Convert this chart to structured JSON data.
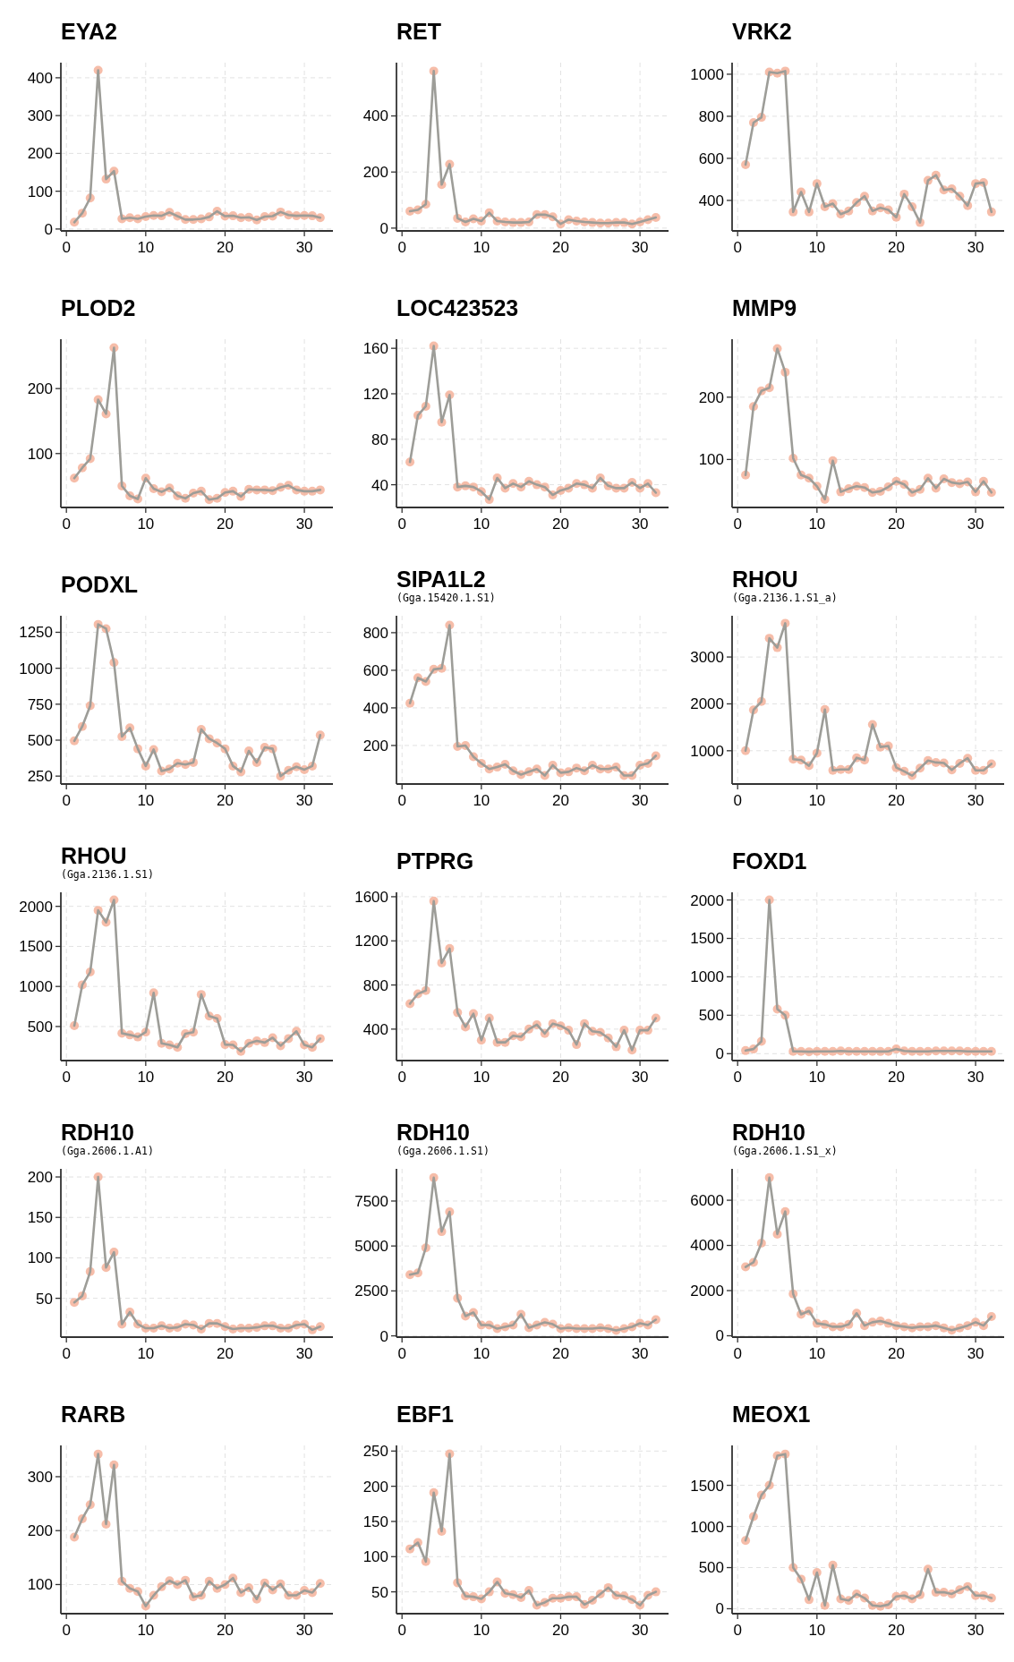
{
  "chart_data": [
    {
      "type": "line",
      "title": "EYA2",
      "x": [
        1,
        2,
        3,
        4,
        5,
        6,
        7,
        8,
        9,
        10,
        11,
        12,
        13,
        14,
        15,
        16,
        17,
        18,
        19,
        20,
        21,
        22,
        23,
        24,
        25,
        26,
        27,
        28,
        29,
        30,
        31,
        32
      ],
      "series": [
        {
          "color": "#f4b29a",
          "values": [
            18,
            42,
            82,
            420,
            132,
            153,
            27,
            30,
            27,
            33,
            36,
            35,
            44,
            34,
            25,
            25,
            27,
            32,
            47,
            34,
            35,
            30,
            31,
            24,
            33,
            34,
            45,
            37,
            35,
            36,
            35,
            30
          ]
        }
      ],
      "xlim": [
        -0.7,
        33.6
      ],
      "xticks": [
        0,
        10,
        20,
        30
      ],
      "ylim": [
        -5,
        440
      ],
      "yticks": [
        0,
        100,
        200,
        300,
        400
      ],
      "grid": true,
      "marker": "circle"
    },
    {
      "type": "line",
      "title": "RET",
      "x": [
        1,
        2,
        3,
        4,
        5,
        6,
        7,
        8,
        9,
        10,
        11,
        12,
        13,
        14,
        15,
        16,
        17,
        18,
        19,
        20,
        21,
        22,
        23,
        24,
        25,
        26,
        27,
        28,
        29,
        30,
        31,
        32
      ],
      "series": [
        {
          "color": "#f4b29a",
          "values": [
            60,
            65,
            85,
            560,
            155,
            228,
            35,
            22,
            33,
            25,
            55,
            25,
            22,
            20,
            20,
            22,
            48,
            48,
            40,
            15,
            30,
            25,
            22,
            20,
            18,
            18,
            20,
            20,
            15,
            22,
            30,
            38
          ]
        }
      ],
      "xlim": [
        -0.7,
        33.6
      ],
      "xticks": [
        0,
        10,
        20,
        30
      ],
      "ylim": [
        -10,
        590
      ],
      "yticks": [
        0,
        200,
        400
      ],
      "grid": true,
      "marker": "circle"
    },
    {
      "type": "line",
      "title": "VRK2",
      "x": [
        1,
        2,
        3,
        4,
        5,
        6,
        7,
        8,
        9,
        10,
        11,
        12,
        13,
        14,
        15,
        16,
        17,
        18,
        19,
        20,
        21,
        22,
        23,
        24,
        25,
        26,
        27,
        28,
        29,
        30,
        31,
        32
      ],
      "series": [
        {
          "color": "#f4b29a",
          "values": [
            570,
            770,
            795,
            1010,
            1005,
            1015,
            345,
            440,
            345,
            480,
            370,
            385,
            335,
            350,
            390,
            420,
            350,
            365,
            355,
            320,
            430,
            370,
            295,
            495,
            520,
            450,
            455,
            420,
            375,
            480,
            485,
            345
          ]
        }
      ],
      "xlim": [
        -0.7,
        33.6
      ],
      "xticks": [
        0,
        10,
        20,
        30
      ],
      "ylim": [
        255,
        1055
      ],
      "yticks": [
        400,
        600,
        800,
        1000
      ],
      "grid": true,
      "marker": "circle"
    },
    {
      "type": "line",
      "title": "PLOD2",
      "x": [
        1,
        2,
        3,
        4,
        5,
        6,
        7,
        8,
        9,
        10,
        11,
        12,
        13,
        14,
        15,
        16,
        17,
        18,
        19,
        20,
        21,
        22,
        23,
        24,
        25,
        26,
        27,
        28,
        29,
        30,
        31,
        32
      ],
      "series": [
        {
          "color": "#f4b29a",
          "values": [
            62,
            78,
            92,
            183,
            161,
            263,
            50,
            35,
            30,
            62,
            46,
            41,
            47,
            35,
            31,
            39,
            42,
            29,
            31,
            40,
            42,
            34,
            45,
            44,
            44,
            43,
            48,
            51,
            44,
            42,
            42,
            44
          ]
        }
      ],
      "xlim": [
        -0.7,
        33.6
      ],
      "xticks": [
        0,
        10,
        20,
        30
      ],
      "ylim": [
        17,
        276
      ],
      "yticks": [
        100,
        200
      ],
      "grid": true,
      "marker": "circle"
    },
    {
      "type": "line",
      "title": "LOC423523",
      "x": [
        1,
        2,
        3,
        4,
        5,
        6,
        7,
        8,
        9,
        10,
        11,
        12,
        13,
        14,
        15,
        16,
        17,
        18,
        19,
        20,
        21,
        22,
        23,
        24,
        25,
        26,
        27,
        28,
        29,
        30,
        31,
        32
      ],
      "series": [
        {
          "color": "#f4b29a",
          "values": [
            60,
            101,
            109,
            162,
            95,
            119,
            38,
            39,
            38,
            34,
            27,
            46,
            37,
            41,
            38,
            43,
            40,
            38,
            31,
            35,
            37,
            41,
            40,
            37,
            46,
            39,
            37,
            37,
            42,
            37,
            41,
            33
          ]
        }
      ],
      "xlim": [
        -0.7,
        33.6
      ],
      "xticks": [
        0,
        10,
        20,
        30
      ],
      "ylim": [
        20,
        168
      ],
      "yticks": [
        40,
        80,
        120,
        160
      ],
      "grid": true,
      "marker": "circle"
    },
    {
      "type": "line",
      "title": "MMP9",
      "x": [
        1,
        2,
        3,
        4,
        5,
        6,
        7,
        8,
        9,
        10,
        11,
        12,
        13,
        14,
        15,
        16,
        17,
        18,
        19,
        20,
        21,
        22,
        23,
        24,
        25,
        26,
        27,
        28,
        29,
        30,
        31,
        32
      ],
      "series": [
        {
          "color": "#f4b29a",
          "values": [
            75,
            185,
            210,
            215,
            278,
            240,
            102,
            75,
            70,
            57,
            36,
            98,
            48,
            53,
            57,
            55,
            47,
            49,
            56,
            65,
            60,
            47,
            52,
            70,
            54,
            69,
            63,
            61,
            64,
            48,
            65,
            47
          ]
        }
      ],
      "xlim": [
        -0.7,
        33.6
      ],
      "xticks": [
        0,
        10,
        20,
        30
      ],
      "ylim": [
        23,
        293
      ],
      "yticks": [
        100,
        200
      ],
      "grid": true,
      "marker": "circle"
    },
    {
      "type": "line",
      "title": "PODXL",
      "x": [
        1,
        2,
        3,
        4,
        5,
        6,
        7,
        8,
        9,
        10,
        11,
        12,
        13,
        14,
        15,
        16,
        17,
        18,
        19,
        20,
        21,
        22,
        23,
        24,
        25,
        26,
        27,
        28,
        29,
        30,
        31,
        32
      ],
      "series": [
        {
          "color": "#f4b29a",
          "values": [
            495,
            595,
            740,
            1305,
            1275,
            1040,
            525,
            585,
            440,
            320,
            435,
            285,
            300,
            340,
            330,
            345,
            575,
            510,
            480,
            440,
            320,
            280,
            425,
            345,
            450,
            440,
            250,
            290,
            315,
            295,
            320,
            535
          ]
        }
      ],
      "xlim": [
        -0.7,
        33.6
      ],
      "xticks": [
        0,
        10,
        20,
        30
      ],
      "ylim": [
        195,
        1365
      ],
      "yticks": [
        250,
        500,
        750,
        1000,
        1250
      ],
      "grid": true,
      "marker": "circle"
    },
    {
      "type": "line",
      "title": "SIPA1L2",
      "subtitle": "(Gga.15420.1.S1)",
      "x": [
        1,
        2,
        3,
        4,
        5,
        6,
        7,
        8,
        9,
        10,
        11,
        12,
        13,
        14,
        15,
        16,
        17,
        18,
        19,
        20,
        21,
        22,
        23,
        24,
        25,
        26,
        27,
        28,
        29,
        30,
        31,
        32
      ],
      "series": [
        {
          "color": "#f4b29a",
          "values": [
            425,
            560,
            540,
            605,
            610,
            840,
            195,
            200,
            140,
            105,
            75,
            85,
            100,
            65,
            45,
            60,
            75,
            40,
            95,
            55,
            60,
            80,
            65,
            95,
            75,
            75,
            85,
            40,
            40,
            95,
            105,
            145
          ]
        }
      ],
      "xlim": [
        -0.7,
        33.6
      ],
      "xticks": [
        0,
        10,
        20,
        30
      ],
      "ylim": [
        -5,
        890
      ],
      "yticks": [
        200,
        400,
        600,
        800
      ],
      "grid": true,
      "marker": "circle"
    },
    {
      "type": "line",
      "title": "RHOU",
      "subtitle": "(Gga.2136.1.S1_a)",
      "x": [
        1,
        2,
        3,
        4,
        5,
        6,
        7,
        8,
        9,
        10,
        11,
        12,
        13,
        14,
        15,
        16,
        17,
        18,
        19,
        20,
        21,
        22,
        23,
        24,
        25,
        26,
        27,
        28,
        29,
        30,
        31,
        32
      ],
      "series": [
        {
          "color": "#f4b29a",
          "values": [
            1000,
            1870,
            2050,
            3400,
            3200,
            3720,
            820,
            800,
            680,
            950,
            1880,
            580,
            600,
            600,
            850,
            800,
            1560,
            1080,
            1100,
            640,
            560,
            470,
            630,
            790,
            750,
            740,
            590,
            730,
            840,
            580,
            580,
            720
          ]
        }
      ],
      "xlim": [
        -0.7,
        33.6
      ],
      "xticks": [
        0,
        10,
        20,
        30
      ],
      "ylim": [
        290,
        3880
      ],
      "yticks": [
        1000,
        2000,
        3000
      ],
      "grid": true,
      "marker": "circle"
    },
    {
      "type": "line",
      "title": "RHOU",
      "subtitle": "(Gga.2136.1.S1)",
      "x": [
        1,
        2,
        3,
        4,
        5,
        6,
        7,
        8,
        9,
        10,
        11,
        12,
        13,
        14,
        15,
        16,
        17,
        18,
        19,
        20,
        21,
        22,
        23,
        24,
        25,
        26,
        27,
        28,
        29,
        30,
        31,
        32
      ],
      "series": [
        {
          "color": "#f4b29a",
          "values": [
            510,
            1020,
            1180,
            1950,
            1800,
            2080,
            415,
            395,
            370,
            430,
            920,
            290,
            270,
            240,
            410,
            430,
            900,
            630,
            600,
            275,
            270,
            190,
            290,
            320,
            300,
            360,
            260,
            350,
            440,
            270,
            240,
            350
          ]
        }
      ],
      "xlim": [
        -0.7,
        33.6
      ],
      "xticks": [
        0,
        10,
        20,
        30
      ],
      "ylim": [
        75,
        2175
      ],
      "yticks": [
        500,
        1000,
        1500,
        2000
      ],
      "grid": true,
      "marker": "circle"
    },
    {
      "type": "line",
      "title": "PTPRG",
      "x": [
        1,
        2,
        3,
        4,
        5,
        6,
        7,
        8,
        9,
        10,
        11,
        12,
        13,
        14,
        15,
        16,
        17,
        18,
        19,
        20,
        21,
        22,
        23,
        24,
        25,
        26,
        27,
        28,
        29,
        30,
        31,
        32
      ],
      "series": [
        {
          "color": "#f4b29a",
          "values": [
            630,
            720,
            750,
            1560,
            1000,
            1130,
            550,
            420,
            540,
            300,
            500,
            280,
            280,
            340,
            330,
            400,
            440,
            360,
            450,
            430,
            390,
            260,
            450,
            380,
            370,
            320,
            240,
            390,
            210,
            390,
            390,
            500
          ]
        }
      ],
      "xlim": [
        -0.7,
        33.6
      ],
      "xticks": [
        0,
        10,
        20,
        30
      ],
      "ylim": [
        115,
        1640
      ],
      "yticks": [
        400,
        800,
        1200,
        1600
      ],
      "grid": true,
      "marker": "circle"
    },
    {
      "type": "line",
      "title": "FOXD1",
      "x": [
        1,
        2,
        3,
        4,
        5,
        6,
        7,
        8,
        9,
        10,
        11,
        12,
        13,
        14,
        15,
        16,
        17,
        18,
        19,
        20,
        21,
        22,
        23,
        24,
        25,
        26,
        27,
        28,
        29,
        30,
        31,
        32
      ],
      "series": [
        {
          "color": "#f4b29a",
          "values": [
            40,
            60,
            160,
            2000,
            580,
            500,
            30,
            30,
            25,
            30,
            30,
            30,
            35,
            30,
            30,
            30,
            30,
            28,
            30,
            60,
            35,
            30,
            30,
            30,
            35,
            35,
            35,
            35,
            30,
            30,
            30,
            30
          ]
        }
      ],
      "xlim": [
        -0.7,
        33.6
      ],
      "xticks": [
        0,
        10,
        20,
        30
      ],
      "ylim": [
        -90,
        2100
      ],
      "yticks": [
        0,
        500,
        1000,
        1500,
        2000
      ],
      "grid": true,
      "marker": "circle"
    },
    {
      "type": "line",
      "title": "RDH10",
      "subtitle": "(Gga.2606.1.A1)",
      "x": [
        1,
        2,
        3,
        4,
        5,
        6,
        7,
        8,
        9,
        10,
        11,
        12,
        13,
        14,
        15,
        16,
        17,
        18,
        19,
        20,
        21,
        22,
        23,
        24,
        25,
        26,
        27,
        28,
        29,
        30,
        31,
        32
      ],
      "series": [
        {
          "color": "#f4b29a",
          "values": [
            45,
            53,
            83,
            200,
            88,
            107,
            18,
            33,
            18,
            13,
            13,
            16,
            13,
            14,
            18,
            17,
            12,
            19,
            19,
            15,
            12,
            13,
            13,
            14,
            16,
            16,
            13,
            13,
            17,
            18,
            11,
            15
          ]
        }
      ],
      "xlim": [
        -0.7,
        33.6
      ],
      "xticks": [
        0,
        10,
        20,
        30
      ],
      "ylim": [
        2,
        210
      ],
      "yticks": [
        50,
        100,
        150,
        200
      ],
      "grid": true,
      "marker": "circle"
    },
    {
      "type": "line",
      "title": "RDH10",
      "subtitle": "(Gga.2606.1.S1)",
      "x": [
        1,
        2,
        3,
        4,
        5,
        6,
        7,
        8,
        9,
        10,
        11,
        12,
        13,
        14,
        15,
        16,
        17,
        18,
        19,
        20,
        21,
        22,
        23,
        24,
        25,
        26,
        27,
        28,
        29,
        30,
        31,
        32
      ],
      "series": [
        {
          "color": "#f4b29a",
          "values": [
            3400,
            3500,
            4900,
            8800,
            5800,
            6900,
            2100,
            1100,
            1300,
            600,
            600,
            400,
            500,
            600,
            1200,
            450,
            600,
            750,
            650,
            400,
            450,
            400,
            400,
            400,
            450,
            400,
            300,
            400,
            500,
            700,
            600,
            900
          ]
        }
      ],
      "xlim": [
        -0.7,
        33.6
      ],
      "xticks": [
        0,
        10,
        20,
        30
      ],
      "ylim": [
        -70,
        9290
      ],
      "yticks": [
        0,
        2500,
        5000,
        7500
      ],
      "grid": true,
      "marker": "circle"
    },
    {
      "type": "line",
      "title": "RDH10",
      "subtitle": "(Gga.2606.1.S1_x)",
      "x": [
        1,
        2,
        3,
        4,
        5,
        6,
        7,
        8,
        9,
        10,
        11,
        12,
        13,
        14,
        15,
        16,
        17,
        18,
        19,
        20,
        21,
        22,
        23,
        24,
        25,
        26,
        27,
        28,
        29,
        30,
        31,
        32
      ],
      "series": [
        {
          "color": "#f4b29a",
          "values": [
            3050,
            3250,
            4100,
            7000,
            4500,
            5500,
            1850,
            950,
            1100,
            550,
            500,
            400,
            400,
            500,
            1000,
            450,
            600,
            650,
            550,
            450,
            400,
            350,
            400,
            400,
            450,
            350,
            250,
            350,
            450,
            600,
            450,
            850
          ]
        }
      ],
      "xlim": [
        -0.7,
        33.6
      ],
      "xticks": [
        0,
        10,
        20,
        30
      ],
      "ylim": [
        -60,
        7390
      ],
      "yticks": [
        0,
        2000,
        4000,
        6000
      ],
      "grid": true,
      "marker": "circle"
    },
    {
      "type": "line",
      "title": "RARB",
      "x": [
        1,
        2,
        3,
        4,
        5,
        6,
        7,
        8,
        9,
        10,
        11,
        12,
        13,
        14,
        15,
        16,
        17,
        18,
        19,
        20,
        21,
        22,
        23,
        24,
        25,
        26,
        27,
        28,
        29,
        30,
        31,
        32
      ],
      "series": [
        {
          "color": "#f4b29a",
          "values": [
            188,
            222,
            248,
            342,
            212,
            322,
            106,
            93,
            87,
            60,
            80,
            96,
            107,
            100,
            108,
            77,
            80,
            106,
            93,
            100,
            112,
            85,
            94,
            73,
            103,
            90,
            101,
            80,
            80,
            89,
            85,
            102
          ]
        }
      ],
      "xlim": [
        -0.7,
        33.6
      ],
      "xticks": [
        0,
        10,
        20,
        30
      ],
      "ylim": [
        46,
        358
      ],
      "yticks": [
        100,
        200,
        300
      ],
      "grid": true,
      "marker": "circle"
    },
    {
      "type": "line",
      "title": "EBF1",
      "x": [
        1,
        2,
        3,
        4,
        5,
        6,
        7,
        8,
        9,
        10,
        11,
        12,
        13,
        14,
        15,
        16,
        17,
        18,
        19,
        20,
        21,
        22,
        23,
        24,
        25,
        26,
        27,
        28,
        29,
        30,
        31,
        32
      ],
      "series": [
        {
          "color": "#f4b29a",
          "values": [
            111,
            120,
            93,
            191,
            136,
            246,
            63,
            44,
            43,
            40,
            50,
            64,
            48,
            46,
            42,
            52,
            31,
            35,
            41,
            41,
            43,
            43,
            32,
            38,
            47,
            56,
            45,
            44,
            39,
            31,
            45,
            50
          ]
        }
      ],
      "xlim": [
        -0.7,
        33.6
      ],
      "xticks": [
        0,
        10,
        20,
        30
      ],
      "ylim": [
        19,
        258
      ],
      "yticks": [
        50,
        100,
        150,
        200,
        250
      ],
      "grid": true,
      "marker": "circle"
    },
    {
      "type": "line",
      "title": "MEOX1",
      "x": [
        1,
        2,
        3,
        4,
        5,
        6,
        7,
        8,
        9,
        10,
        11,
        12,
        13,
        14,
        15,
        16,
        17,
        18,
        19,
        20,
        21,
        22,
        23,
        24,
        25,
        26,
        27,
        28,
        29,
        30,
        31,
        32
      ],
      "series": [
        {
          "color": "#f4b29a",
          "values": [
            830,
            1120,
            1380,
            1500,
            1860,
            1880,
            500,
            360,
            110,
            440,
            40,
            530,
            120,
            100,
            180,
            130,
            40,
            30,
            50,
            150,
            160,
            120,
            170,
            480,
            200,
            200,
            180,
            230,
            270,
            160,
            160,
            130
          ]
        }
      ],
      "xlim": [
        -0.7,
        33.6
      ],
      "xticks": [
        0,
        10,
        20,
        30
      ],
      "ylim": [
        -60,
        1985
      ],
      "yticks": [
        0,
        500,
        1000,
        1500
      ],
      "grid": true,
      "marker": "circle"
    }
  ]
}
